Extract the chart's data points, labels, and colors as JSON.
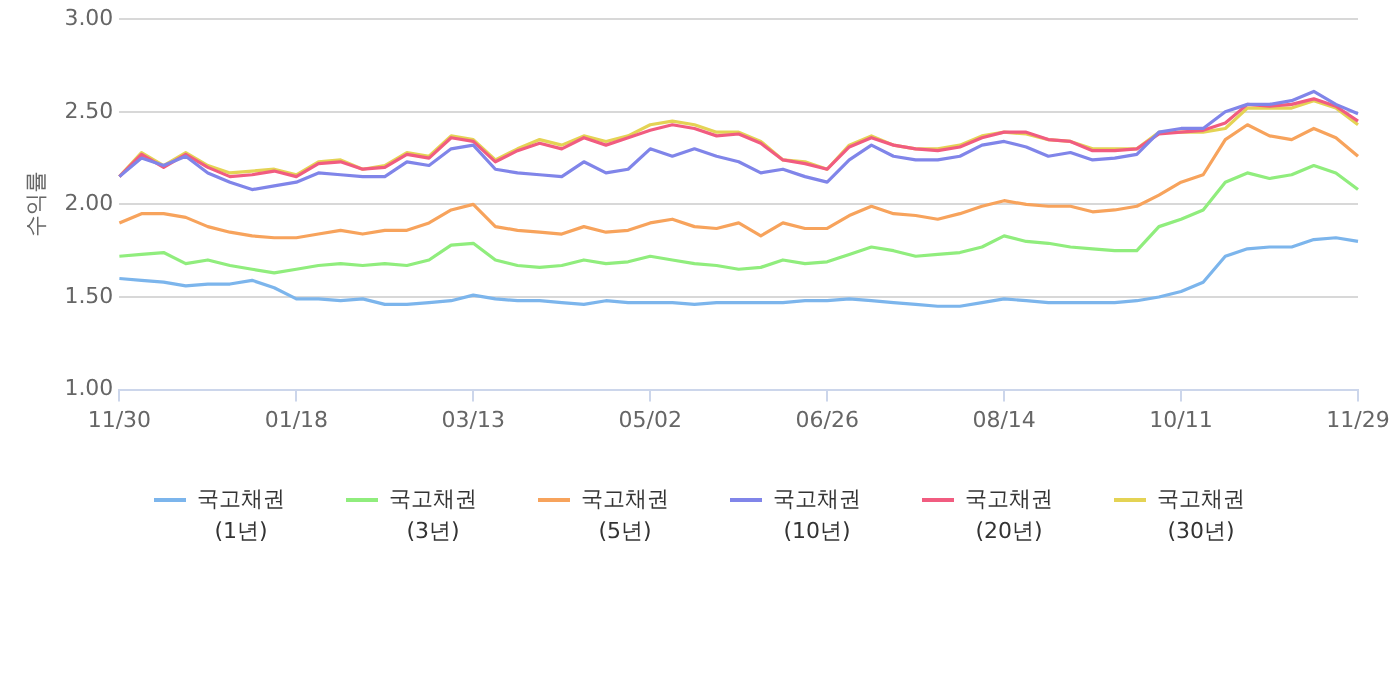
{
  "chart_data": {
    "type": "line",
    "ylabel": "수익률",
    "categories": [
      "11/30",
      null,
      null,
      null,
      null,
      null,
      null,
      null,
      "01/18",
      null,
      null,
      null,
      null,
      null,
      null,
      null,
      "03/13",
      null,
      null,
      null,
      null,
      null,
      null,
      null,
      "05/02",
      null,
      null,
      null,
      null,
      null,
      null,
      null,
      "06/26",
      null,
      null,
      null,
      null,
      null,
      null,
      null,
      "08/14",
      null,
      null,
      null,
      null,
      null,
      null,
      null,
      "10/11",
      null,
      null,
      null,
      null,
      null,
      null,
      null,
      "11/29"
    ],
    "series": [
      {
        "name": "국고채권 (1년)",
        "color": "#7cb5ec",
        "values": [
          1.6,
          1.59,
          1.58,
          1.56,
          1.57,
          1.57,
          1.59,
          1.55,
          1.49,
          1.49,
          1.48,
          1.49,
          1.46,
          1.46,
          1.47,
          1.48,
          1.51,
          1.49,
          1.48,
          1.48,
          1.47,
          1.46,
          1.48,
          1.47,
          1.47,
          1.47,
          1.46,
          1.47,
          1.47,
          1.47,
          1.47,
          1.48,
          1.48,
          1.49,
          1.48,
          1.47,
          1.46,
          1.45,
          1.45,
          1.47,
          1.49,
          1.48,
          1.47,
          1.47,
          1.47,
          1.47,
          1.48,
          1.5,
          1.53,
          1.58,
          1.72,
          1.76,
          1.77,
          1.77,
          1.81,
          1.82,
          1.8
        ]
      },
      {
        "name": "국고채권 (3년)",
        "color": "#90ed7d",
        "values": [
          1.72,
          1.73,
          1.74,
          1.68,
          1.7,
          1.67,
          1.65,
          1.63,
          1.65,
          1.67,
          1.68,
          1.67,
          1.68,
          1.67,
          1.7,
          1.78,
          1.79,
          1.7,
          1.67,
          1.66,
          1.67,
          1.7,
          1.68,
          1.69,
          1.72,
          1.7,
          1.68,
          1.67,
          1.65,
          1.66,
          1.7,
          1.68,
          1.69,
          1.73,
          1.77,
          1.75,
          1.72,
          1.73,
          1.74,
          1.77,
          1.83,
          1.8,
          1.79,
          1.77,
          1.76,
          1.75,
          1.75,
          1.88,
          1.92,
          1.97,
          2.12,
          2.17,
          2.14,
          2.16,
          2.21,
          2.17,
          2.08
        ]
      },
      {
        "name": "국고채권 (5년)",
        "color": "#f7a35c",
        "values": [
          1.9,
          1.95,
          1.95,
          1.93,
          1.88,
          1.85,
          1.83,
          1.82,
          1.82,
          1.84,
          1.86,
          1.84,
          1.86,
          1.86,
          1.9,
          1.97,
          2.0,
          1.88,
          1.86,
          1.85,
          1.84,
          1.88,
          1.85,
          1.86,
          1.9,
          1.92,
          1.88,
          1.87,
          1.9,
          1.83,
          1.9,
          1.87,
          1.87,
          1.94,
          1.99,
          1.95,
          1.94,
          1.92,
          1.95,
          1.99,
          2.02,
          2.0,
          1.99,
          1.99,
          1.96,
          1.97,
          1.99,
          2.05,
          2.12,
          2.16,
          2.35,
          2.43,
          2.37,
          2.35,
          2.41,
          2.36,
          2.26
        ]
      },
      {
        "name": "국고채권 (10년)",
        "color": "#8085e9",
        "values": [
          2.15,
          2.25,
          2.21,
          2.26,
          2.17,
          2.12,
          2.08,
          2.1,
          2.12,
          2.17,
          2.16,
          2.15,
          2.15,
          2.23,
          2.21,
          2.3,
          2.32,
          2.19,
          2.17,
          2.16,
          2.15,
          2.23,
          2.17,
          2.19,
          2.3,
          2.26,
          2.3,
          2.26,
          2.23,
          2.17,
          2.19,
          2.15,
          2.12,
          2.24,
          2.32,
          2.26,
          2.24,
          2.24,
          2.26,
          2.32,
          2.34,
          2.31,
          2.26,
          2.28,
          2.24,
          2.25,
          2.27,
          2.39,
          2.41,
          2.41,
          2.5,
          2.54,
          2.54,
          2.56,
          2.61,
          2.54,
          2.49
        ]
      },
      {
        "name": "국고채권 (20년)",
        "color": "#f15c80",
        "values": [
          2.15,
          2.27,
          2.2,
          2.27,
          2.2,
          2.15,
          2.16,
          2.18,
          2.15,
          2.22,
          2.23,
          2.19,
          2.2,
          2.27,
          2.25,
          2.36,
          2.34,
          2.23,
          2.29,
          2.33,
          2.3,
          2.36,
          2.32,
          2.36,
          2.4,
          2.43,
          2.41,
          2.37,
          2.38,
          2.33,
          2.24,
          2.22,
          2.19,
          2.31,
          2.36,
          2.32,
          2.3,
          2.29,
          2.31,
          2.36,
          2.39,
          2.39,
          2.35,
          2.34,
          2.29,
          2.29,
          2.3,
          2.38,
          2.39,
          2.4,
          2.44,
          2.54,
          2.53,
          2.54,
          2.57,
          2.53,
          2.45
        ]
      },
      {
        "name": "국고채권 (30년)",
        "color": "#e4d354",
        "values": [
          2.15,
          2.28,
          2.21,
          2.28,
          2.21,
          2.17,
          2.18,
          2.19,
          2.16,
          2.23,
          2.24,
          2.19,
          2.21,
          2.28,
          2.26,
          2.37,
          2.35,
          2.24,
          2.3,
          2.35,
          2.32,
          2.37,
          2.34,
          2.37,
          2.43,
          2.45,
          2.43,
          2.39,
          2.39,
          2.34,
          2.24,
          2.23,
          2.19,
          2.32,
          2.37,
          2.32,
          2.3,
          2.3,
          2.32,
          2.37,
          2.39,
          2.38,
          2.35,
          2.34,
          2.3,
          2.3,
          2.3,
          2.39,
          2.39,
          2.39,
          2.41,
          2.52,
          2.52,
          2.52,
          2.56,
          2.52,
          2.43
        ]
      }
    ],
    "ylim": [
      1.0,
      3.0
    ],
    "yticks": [
      {
        "value": 1.0,
        "label": "1.00"
      },
      {
        "value": 1.5,
        "label": "1.50"
      },
      {
        "value": 2.0,
        "label": "2.00"
      },
      {
        "value": 2.5,
        "label": "2.50"
      },
      {
        "value": 3.0,
        "label": "3.00"
      }
    ],
    "grid": "y",
    "legend": "bottom",
    "marker": "none",
    "line_style": "solid"
  }
}
